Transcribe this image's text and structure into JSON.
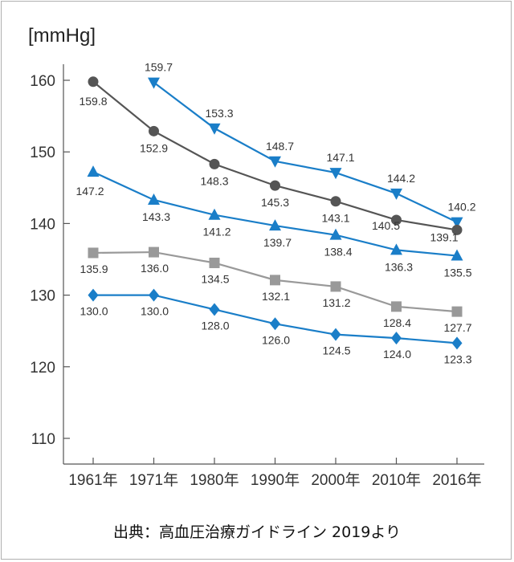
{
  "unit_label": "[mmHg]",
  "source_note": "出典：高血圧治療ガイドライン 2019より",
  "chart_data": {
    "type": "line",
    "categories": [
      "1961年",
      "1971年",
      "1980年",
      "1990年",
      "2000年",
      "2010年",
      "2016年"
    ],
    "ylim": [
      105,
      163
    ],
    "yticks": [
      110,
      120,
      130,
      140,
      150,
      160
    ],
    "grid": false,
    "series": [
      {
        "marker": "triangle-down",
        "color": "#1a7ec8",
        "values": [
          null,
          159.7,
          153.3,
          148.7,
          147.1,
          144.2,
          140.2
        ]
      },
      {
        "marker": "circle",
        "color": "#555555",
        "values": [
          159.8,
          152.9,
          148.3,
          145.3,
          143.1,
          140.5,
          139.1
        ]
      },
      {
        "marker": "triangle-up",
        "color": "#1a7ec8",
        "values": [
          147.2,
          143.3,
          141.2,
          139.7,
          138.4,
          136.3,
          135.5
        ]
      },
      {
        "marker": "square",
        "color": "#999999",
        "values": [
          135.9,
          136.0,
          134.5,
          132.1,
          131.2,
          128.4,
          127.7
        ]
      },
      {
        "marker": "diamond",
        "color": "#1a7ec8",
        "values": [
          130.0,
          130.0,
          128.0,
          126.0,
          124.5,
          124.0,
          123.3
        ]
      }
    ]
  }
}
